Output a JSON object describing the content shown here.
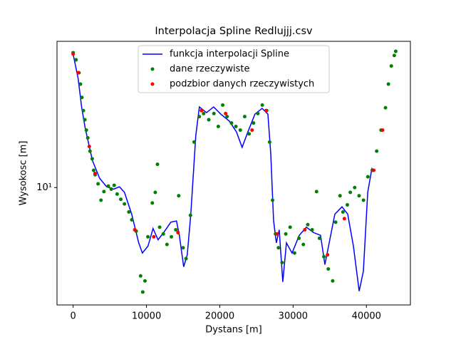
{
  "chart_data": {
    "type": "line",
    "title": "Interpolacja Spline Redlujjj.csv",
    "xlabel": "Dystans [m]",
    "ylabel": "Wysokosc [m]",
    "xlim": [
      -2200,
      46000
    ],
    "xticks": [
      0,
      10000,
      20000,
      30000,
      40000
    ],
    "ylim": [
      2.2,
      66
    ],
    "ylog": true,
    "yticks": [
      {
        "value": 10,
        "label": "10¹"
      }
    ],
    "legend": "upper center",
    "series": [
      {
        "name": "funkcja interpolacji Spline",
        "type": "line",
        "color": "#0000ff",
        "x": [
          0,
          680,
          1170,
          1650,
          2630,
          3600,
          4570,
          5540,
          6320,
          7000,
          7980,
          8950,
          9440,
          10210,
          10900,
          11580,
          12350,
          13330,
          14100,
          14490,
          15080,
          15560,
          16050,
          16730,
          17220,
          18190,
          19160,
          20140,
          21300,
          22280,
          23050,
          23830,
          24800,
          25780,
          26560,
          26950,
          27340,
          27720,
          28110,
          28600,
          29090,
          29860,
          30840,
          31810,
          32780,
          33750,
          34340,
          34920,
          35700,
          36670,
          37450,
          38230,
          39010,
          39590,
          40180,
          40760
        ],
        "values": [
          56,
          41,
          28,
          21.5,
          14.2,
          11.3,
          10.1,
          9.8,
          10.1,
          9.4,
          7.1,
          4.9,
          4.3,
          4.7,
          5.9,
          5.1,
          5.6,
          6.4,
          6.5,
          5.4,
          3.6,
          4.2,
          7.1,
          19.6,
          28.3,
          26.3,
          28.3,
          25.8,
          23.6,
          20.5,
          16.8,
          20.5,
          25.8,
          27.8,
          25.8,
          15.5,
          6.5,
          4.9,
          5.8,
          2.96,
          4.9,
          4.3,
          5.4,
          6.0,
          5.6,
          5.4,
          3.7,
          4.9,
          7.1,
          7.8,
          7.1,
          4.7,
          2.63,
          3.4,
          9.4,
          12.9
        ]
      },
      {
        "name": "dane rzeczywiste",
        "type": "scatter",
        "color": "#008000",
        "x": [
          0,
          400,
          800,
          1000,
          1200,
          1400,
          1600,
          1800,
          2000,
          2300,
          2600,
          2800,
          3000,
          3400,
          3800,
          4200,
          4800,
          5200,
          5600,
          6000,
          6500,
          7000,
          7600,
          8000,
          8600,
          9200,
          9500,
          9800,
          10200,
          10800,
          11200,
          11500,
          11800,
          12300,
          12800,
          13400,
          14000,
          14400,
          15000,
          15400,
          16000,
          16500,
          17200,
          17800,
          18500,
          19200,
          19800,
          20400,
          21000,
          21600,
          22200,
          22800,
          23400,
          24000,
          24600,
          25200,
          25800,
          26400,
          26800,
          27200,
          27600,
          28000,
          28500,
          29000,
          29600,
          30200,
          30800,
          31400,
          32000,
          32600,
          33200,
          33600,
          34200,
          34800,
          35400,
          35800,
          36400,
          36800,
          37400,
          37800,
          38400,
          39000,
          39600,
          40200,
          40800,
          41400,
          42000,
          42600,
          43000,
          43400,
          43800,
          44000
        ],
        "values": [
          57,
          52,
          44,
          38,
          32,
          27,
          24,
          21,
          19,
          16,
          14.5,
          12.5,
          11.8,
          10.5,
          8.5,
          9.5,
          10.2,
          9.8,
          10.3,
          9.2,
          8.6,
          8.1,
          7.3,
          6.6,
          5.7,
          3.2,
          2.6,
          3.0,
          5.3,
          8.2,
          9.4,
          13.5,
          6.0,
          5.5,
          4.8,
          5.3,
          5.8,
          9.0,
          4.6,
          4.0,
          7.0,
          18,
          25,
          26,
          24,
          26,
          22,
          29,
          25,
          23,
          22,
          21,
          25,
          20,
          23,
          26,
          29,
          27,
          18,
          8.5,
          5.5,
          4.6,
          3.8,
          5.5,
          6.0,
          4.3,
          5.2,
          4.8,
          6.2,
          5.8,
          9.5,
          5.2,
          4.1,
          3.5,
          3.0,
          6.4,
          9.0,
          7.3,
          8.0,
          9.4,
          10.0,
          9.0,
          8.5,
          11.5,
          12.5,
          16,
          21,
          28,
          38,
          48,
          55,
          58
        ]
      },
      {
        "name": "podzbior danych rzeczywistych",
        "type": "scatter",
        "color": "#ff0000",
        "x": [
          0,
          700,
          2200,
          3000,
          8400,
          11000,
          14300,
          17500,
          20800,
          24400,
          26300,
          27800,
          31600,
          34700,
          37000,
          41000,
          42200
        ],
        "values": [
          56,
          44,
          17,
          12,
          5.8,
          5.3,
          5.6,
          27,
          26,
          21,
          27,
          5.5,
          5.8,
          4.2,
          6.7,
          12.5,
          21
        ]
      }
    ]
  }
}
